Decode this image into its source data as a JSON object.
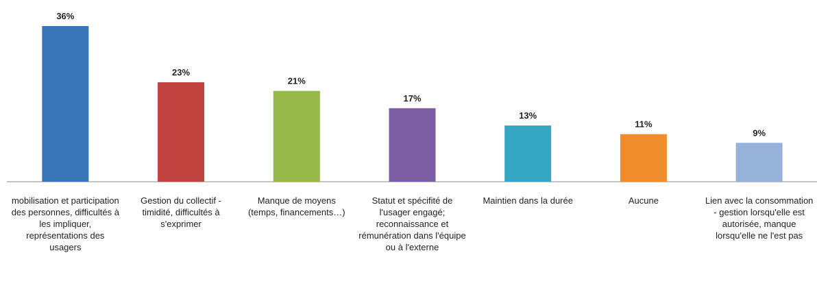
{
  "chart_data": {
    "type": "bar",
    "categories": [
      "mobilisation et participation des personnes, difficultés à les impliquer, représentations des usagers",
      "Gestion du collectif - timidité, difficultés à s'exprimer",
      "Manque de moyens (temps, financements…)",
      "Statut et spécifité de l'usager engagé; reconnaissance et rémunération dans l'équipe ou à l'externe",
      "Maintien dans la durée",
      "Aucune",
      "Lien avec la consommation - gestion lorsqu'elle est autorisée, manque lorsqu'elle ne l'est pas"
    ],
    "values": [
      36,
      23,
      21,
      17,
      13,
      11,
      9
    ],
    "value_labels": [
      "36%",
      "23%",
      "21%",
      "17%",
      "13%",
      "11%",
      "9%"
    ],
    "colors": [
      "#3a75b8",
      "#c0433f",
      "#96b94a",
      "#7b5ea3",
      "#36a7c2",
      "#f08c2b",
      "#97b2d9"
    ]
  }
}
